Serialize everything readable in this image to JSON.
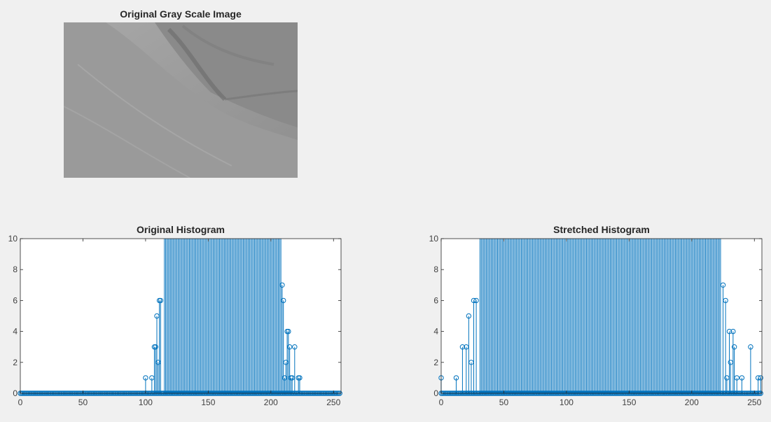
{
  "figure": {
    "image_title": "Original Gray Scale Image"
  },
  "colors": {
    "stem": "#0072bd",
    "axis": "#262626",
    "background": "#f0f0f0"
  },
  "chart_data": [
    {
      "type": "stem",
      "title": "Original Histogram",
      "xlabel": "",
      "ylabel": "",
      "xlim": [
        0,
        256
      ],
      "ylim": [
        0,
        10
      ],
      "xticks": [
        0,
        50,
        100,
        150,
        200,
        250
      ],
      "yticks": [
        0,
        2,
        4,
        6,
        8,
        10
      ],
      "clipped_min_value": 10,
      "clipped_range": [
        115,
        208
      ],
      "points": [
        {
          "x": 100,
          "y": 1
        },
        {
          "x": 105,
          "y": 1
        },
        {
          "x": 107,
          "y": 3
        },
        {
          "x": 108,
          "y": 3
        },
        {
          "x": 109,
          "y": 5
        },
        {
          "x": 110,
          "y": 2
        },
        {
          "x": 111,
          "y": 6
        },
        {
          "x": 112,
          "y": 6
        },
        {
          "x": 209,
          "y": 7
        },
        {
          "x": 210,
          "y": 6
        },
        {
          "x": 211,
          "y": 1
        },
        {
          "x": 212,
          "y": 2
        },
        {
          "x": 213,
          "y": 4
        },
        {
          "x": 214,
          "y": 4
        },
        {
          "x": 215,
          "y": 3
        },
        {
          "x": 216,
          "y": 1
        },
        {
          "x": 217,
          "y": 1
        },
        {
          "x": 219,
          "y": 3
        },
        {
          "x": 222,
          "y": 1
        },
        {
          "x": 223,
          "y": 1
        }
      ]
    },
    {
      "type": "stem",
      "title": "Stretched Histogram",
      "xlabel": "",
      "ylabel": "",
      "xlim": [
        0,
        256
      ],
      "ylim": [
        0,
        10
      ],
      "xticks": [
        0,
        50,
        100,
        150,
        200,
        250
      ],
      "yticks": [
        0,
        2,
        4,
        6,
        8,
        10
      ],
      "clipped_min_value": 10,
      "clipped_range": [
        31,
        223
      ],
      "points": [
        {
          "x": 0,
          "y": 1
        },
        {
          "x": 12,
          "y": 1
        },
        {
          "x": 17,
          "y": 3
        },
        {
          "x": 20,
          "y": 3
        },
        {
          "x": 22,
          "y": 5
        },
        {
          "x": 24,
          "y": 2
        },
        {
          "x": 26,
          "y": 6
        },
        {
          "x": 28,
          "y": 6
        },
        {
          "x": 225,
          "y": 7
        },
        {
          "x": 227,
          "y": 6
        },
        {
          "x": 228,
          "y": 1
        },
        {
          "x": 230,
          "y": 4
        },
        {
          "x": 231,
          "y": 2
        },
        {
          "x": 233,
          "y": 4
        },
        {
          "x": 234,
          "y": 3
        },
        {
          "x": 236,
          "y": 1
        },
        {
          "x": 240,
          "y": 1
        },
        {
          "x": 247,
          "y": 3
        },
        {
          "x": 253,
          "y": 1
        },
        {
          "x": 255,
          "y": 1
        }
      ]
    }
  ]
}
